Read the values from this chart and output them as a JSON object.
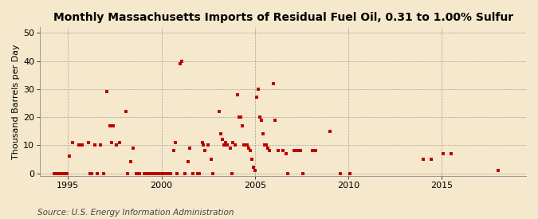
{
  "title": "Monthly Massachusetts Imports of Residual Fuel Oil, 0.31 to 1.00% Sulfur",
  "ylabel": "Thousand Barrels per Day",
  "source": "Source: U.S. Energy Information Administration",
  "xlim": [
    1993.5,
    2019.5
  ],
  "ylim": [
    -1,
    52
  ],
  "yticks": [
    0,
    10,
    20,
    30,
    40,
    50
  ],
  "xticks": [
    1995,
    2000,
    2005,
    2010,
    2015
  ],
  "background_color": "#f5e8cc",
  "plot_bg_color": "#f5e8cc",
  "marker_color": "#bb0000",
  "marker_size": 5,
  "title_fontsize": 10,
  "label_fontsize": 8,
  "source_fontsize": 7.5,
  "points": [
    [
      1994.25,
      0
    ],
    [
      1994.42,
      0
    ],
    [
      1994.58,
      0
    ],
    [
      1994.75,
      0
    ],
    [
      1994.92,
      0
    ],
    [
      1995.08,
      6
    ],
    [
      1995.25,
      11
    ],
    [
      1995.58,
      10
    ],
    [
      1995.75,
      10
    ],
    [
      1996.08,
      11
    ],
    [
      1996.17,
      0
    ],
    [
      1996.25,
      0
    ],
    [
      1996.42,
      10
    ],
    [
      1996.58,
      0
    ],
    [
      1996.75,
      10
    ],
    [
      1996.92,
      0
    ],
    [
      1997.08,
      29
    ],
    [
      1997.25,
      17
    ],
    [
      1997.33,
      11
    ],
    [
      1997.42,
      17
    ],
    [
      1997.58,
      10
    ],
    [
      1997.75,
      11
    ],
    [
      1998.08,
      22
    ],
    [
      1998.17,
      0
    ],
    [
      1998.33,
      4
    ],
    [
      1998.5,
      9
    ],
    [
      1998.67,
      0
    ],
    [
      1998.83,
      0
    ],
    [
      1999.08,
      0
    ],
    [
      1999.17,
      0
    ],
    [
      1999.33,
      0
    ],
    [
      1999.5,
      0
    ],
    [
      1999.67,
      0
    ],
    [
      1999.83,
      0
    ],
    [
      1999.92,
      0
    ],
    [
      2000.08,
      0
    ],
    [
      2000.17,
      0
    ],
    [
      2000.25,
      0
    ],
    [
      2000.33,
      0
    ],
    [
      2000.5,
      0
    ],
    [
      2000.67,
      8
    ],
    [
      2000.75,
      11
    ],
    [
      2000.83,
      0
    ],
    [
      2001.0,
      39
    ],
    [
      2001.08,
      40
    ],
    [
      2001.25,
      0
    ],
    [
      2001.42,
      4
    ],
    [
      2001.5,
      9
    ],
    [
      2001.67,
      0
    ],
    [
      2001.92,
      0
    ],
    [
      2002.0,
      0
    ],
    [
      2002.17,
      11
    ],
    [
      2002.25,
      10
    ],
    [
      2002.33,
      8
    ],
    [
      2002.5,
      10
    ],
    [
      2002.67,
      5
    ],
    [
      2002.75,
      0
    ],
    [
      2003.08,
      22
    ],
    [
      2003.17,
      14
    ],
    [
      2003.25,
      12
    ],
    [
      2003.33,
      10
    ],
    [
      2003.42,
      11
    ],
    [
      2003.5,
      10
    ],
    [
      2003.67,
      9
    ],
    [
      2003.75,
      0
    ],
    [
      2003.83,
      11
    ],
    [
      2003.92,
      10
    ],
    [
      2004.08,
      28
    ],
    [
      2004.17,
      20
    ],
    [
      2004.25,
      20
    ],
    [
      2004.33,
      17
    ],
    [
      2004.42,
      10
    ],
    [
      2004.5,
      10
    ],
    [
      2004.58,
      10
    ],
    [
      2004.67,
      9
    ],
    [
      2004.75,
      8
    ],
    [
      2004.83,
      5
    ],
    [
      2004.92,
      2
    ],
    [
      2005.0,
      1
    ],
    [
      2005.08,
      27
    ],
    [
      2005.17,
      30
    ],
    [
      2005.25,
      20
    ],
    [
      2005.33,
      19
    ],
    [
      2005.42,
      14
    ],
    [
      2005.5,
      10
    ],
    [
      2005.58,
      10
    ],
    [
      2005.67,
      9
    ],
    [
      2005.75,
      8
    ],
    [
      2006.0,
      32
    ],
    [
      2006.08,
      19
    ],
    [
      2006.25,
      8
    ],
    [
      2006.5,
      8
    ],
    [
      2006.67,
      7
    ],
    [
      2006.75,
      0
    ],
    [
      2007.08,
      8
    ],
    [
      2007.25,
      8
    ],
    [
      2007.42,
      8
    ],
    [
      2007.58,
      0
    ],
    [
      2008.08,
      8
    ],
    [
      2008.25,
      8
    ],
    [
      2009.0,
      15
    ],
    [
      2009.58,
      0
    ],
    [
      2010.08,
      0
    ],
    [
      2014.0,
      5
    ],
    [
      2014.42,
      5
    ],
    [
      2015.08,
      7
    ],
    [
      2015.5,
      7
    ],
    [
      2018.0,
      1
    ]
  ]
}
